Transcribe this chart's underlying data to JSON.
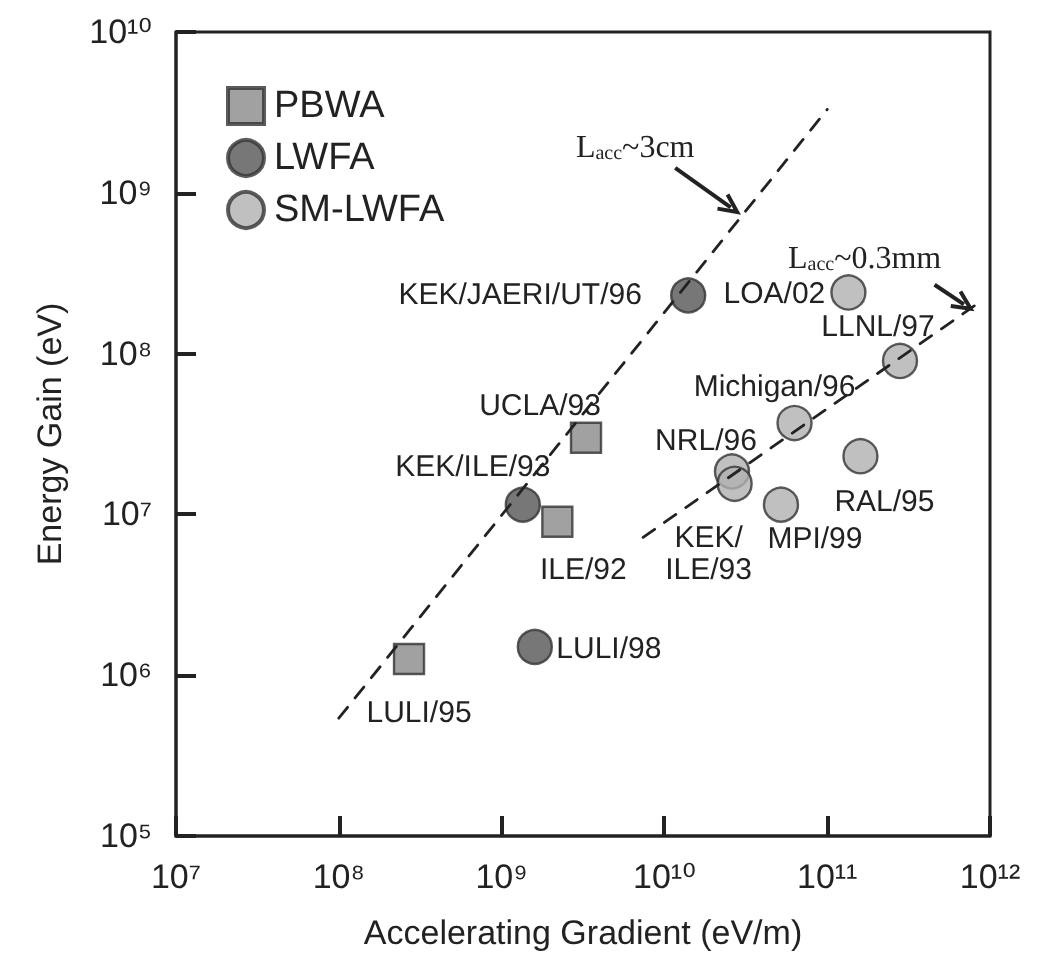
{
  "chart_data": {
    "type": "scatter",
    "xlabel": "Accelerating Gradient (eV/m)",
    "ylabel": "Energy Gain (eV)",
    "log": "xy",
    "grid": false,
    "legend": "top left",
    "xlim": [
      10000000,
      1000000000000
    ],
    "ylim": [
      100000,
      10000000000
    ],
    "xticks": [
      {
        "value": 10000000,
        "label": "10⁷"
      },
      {
        "value": 100000000,
        "label": "10⁸"
      },
      {
        "value": 1000000000,
        "label": "10⁹"
      },
      {
        "value": 10000000000,
        "label": "10¹⁰"
      },
      {
        "value": 100000000000,
        "label": "10¹¹"
      },
      {
        "value": 1000000000000,
        "label": "10¹²"
      }
    ],
    "yticks": [
      {
        "value": 100000,
        "label": "10⁵"
      },
      {
        "value": 1000000,
        "label": "10⁶"
      },
      {
        "value": 10000000,
        "label": "10⁷"
      },
      {
        "value": 100000000,
        "label": "10⁸"
      },
      {
        "value": 1000000000,
        "label": "10⁹"
      },
      {
        "value": 10000000000,
        "label": "10¹⁰"
      }
    ],
    "series": [
      {
        "name": "PBWA",
        "marker": "square",
        "color": "#8a8a8a",
        "x": [
          270000000,
          2200000000,
          3300000000
        ],
        "values": [
          1260000,
          9000000,
          30000000
        ]
      },
      {
        "name": "LWFA",
        "marker": "circle",
        "color": "#555555",
        "x": [
          14000000000,
          1350000000,
          1600000000
        ],
        "values": [
          230000000,
          11500000,
          1500000
        ]
      },
      {
        "name": "SM-LWFA",
        "marker": "circle",
        "color": "#b0b0b0",
        "x": [
          135000000000,
          280000000000,
          63000000000,
          26000000000,
          27000000000,
          160000000000,
          52000000000
        ],
        "values": [
          240000000,
          90000000,
          37000000,
          18500000,
          15500000,
          23000000,
          11500000
        ]
      },
      {
        "type": "line",
        "marker": "none",
        "line_style": "dashed",
        "color": "#222222",
        "x": [
          100000000,
          100000000000
        ],
        "values": [
          540000,
          3300000000
        ]
      },
      {
        "type": "line",
        "marker": "none",
        "line_style": "dashed",
        "color": "#222222",
        "x": [
          7400000000,
          870000000000
        ],
        "values": [
          7200000,
          210000000
        ]
      }
    ],
    "annotations": [
      {
        "text": "LULI/95",
        "x": 270000000,
        "y": 1260000
      },
      {
        "text": "ILE/92",
        "x": 2200000000,
        "y": 9000000
      },
      {
        "text": "UCLA/93",
        "x": 3300000000,
        "y": 30000000
      },
      {
        "text": "KEK/JAERI/UT/96",
        "x": 14000000000,
        "y": 230000000
      },
      {
        "text": "KEK/ILE/93",
        "x": 1350000000,
        "y": 11500000
      },
      {
        "text": "LULI/98",
        "x": 1600000000,
        "y": 1500000
      },
      {
        "text": "LOA/02",
        "x": 135000000000,
        "y": 240000000
      },
      {
        "text": "LLNL/97",
        "x": 280000000000,
        "y": 90000000
      },
      {
        "text": "Michigan/96",
        "x": 63000000000,
        "y": 37000000
      },
      {
        "text": "NRL/96",
        "x": 26000000000,
        "y": 18500000
      },
      {
        "text": "KEK/\nILE/93",
        "x": 27000000000,
        "y": 15500000
      },
      {
        "text": "RAL/95",
        "x": 160000000000,
        "y": 23000000
      },
      {
        "text": "MPI/99",
        "x": 52000000000,
        "y": 11500000
      },
      {
        "text": "L$_{acc}$~3cm",
        "x": 28000000000,
        "y": 760000000
      },
      {
        "text": "L$_{acc}$~0.3mm",
        "x": 760000000000,
        "y": 190000000
      }
    ]
  }
}
